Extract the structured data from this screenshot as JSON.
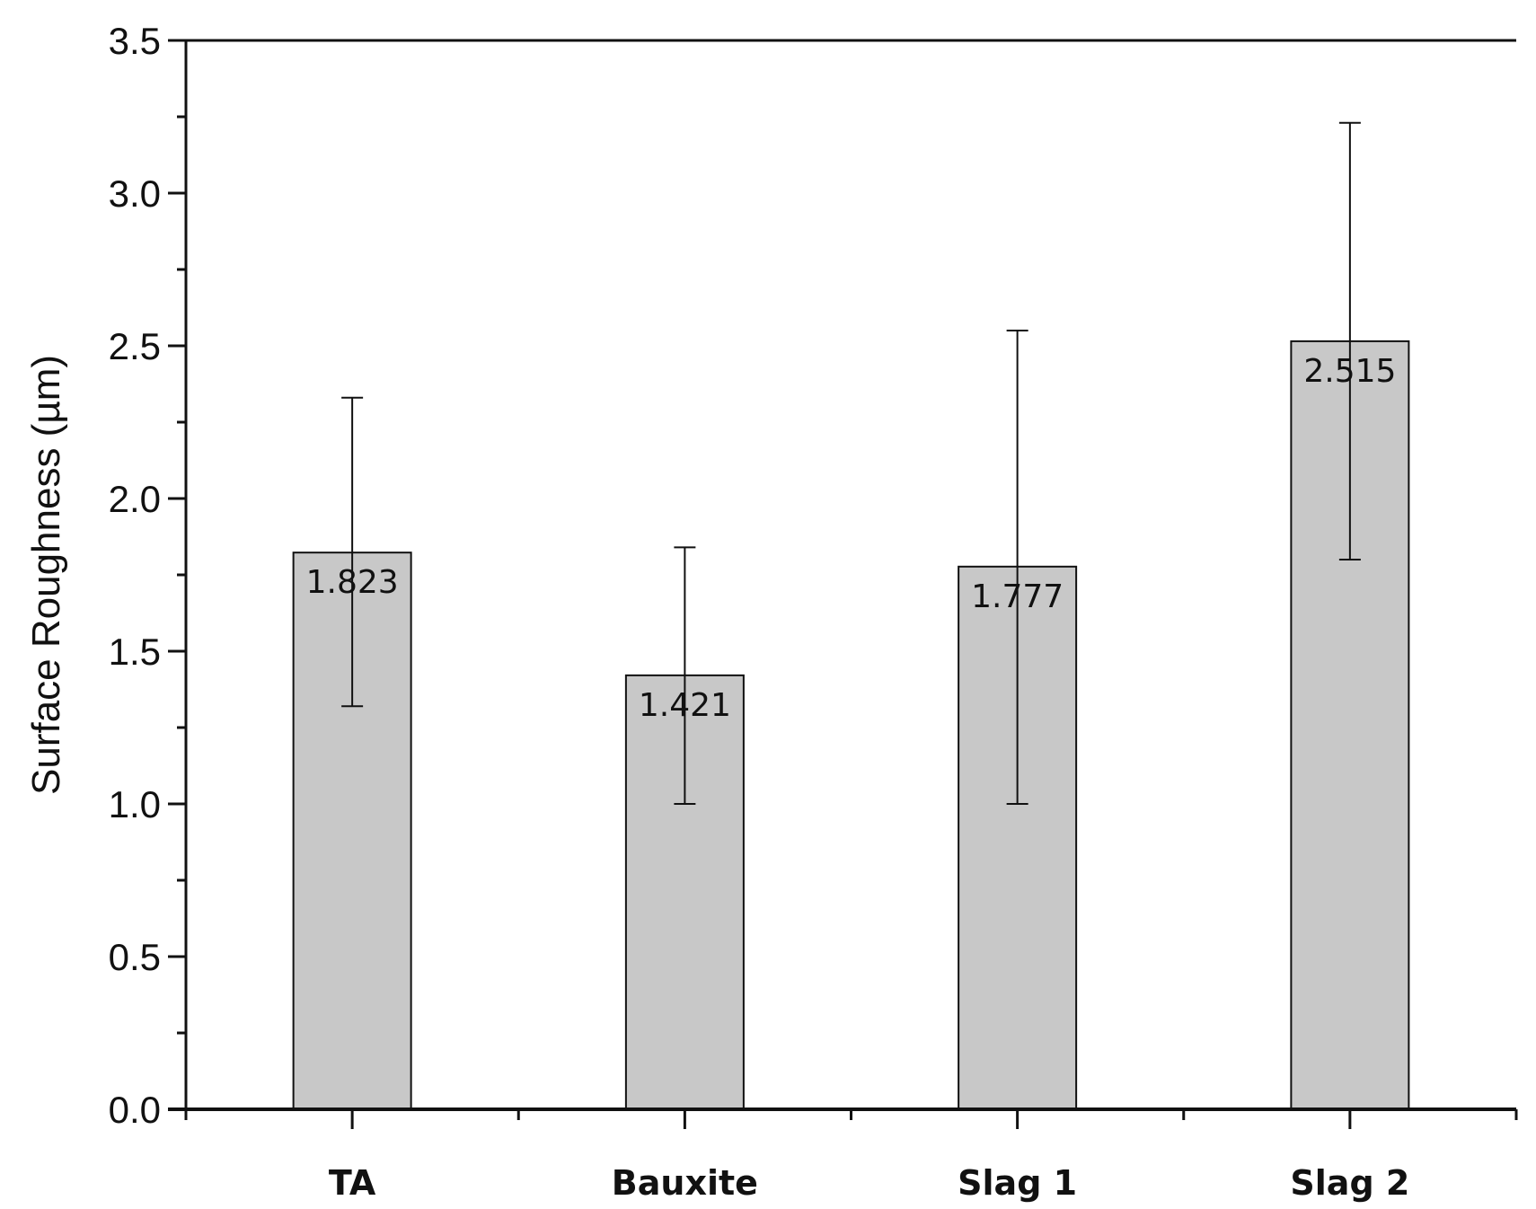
{
  "chart_data": {
    "type": "bar",
    "title": "",
    "xlabel": "",
    "ylabel": "Surface Roughness (µm)",
    "categories": [
      "TA",
      "Bauxite",
      "Slag 1",
      "Slag 2"
    ],
    "values": [
      1.823,
      1.421,
      1.777,
      2.515
    ],
    "value_labels": [
      "1.823",
      "1.421",
      "1.777",
      "2.515"
    ],
    "error_low": [
      1.32,
      1.0,
      1.0,
      1.8
    ],
    "error_high": [
      2.33,
      1.84,
      2.55,
      3.23
    ],
    "ylim": [
      0,
      3.5
    ],
    "yticks": [
      "0.0",
      "0.5",
      "1.0",
      "1.5",
      "2.0",
      "2.5",
      "3.0",
      "3.5"
    ],
    "grid": false,
    "bar_color": "#c8c8c8"
  }
}
